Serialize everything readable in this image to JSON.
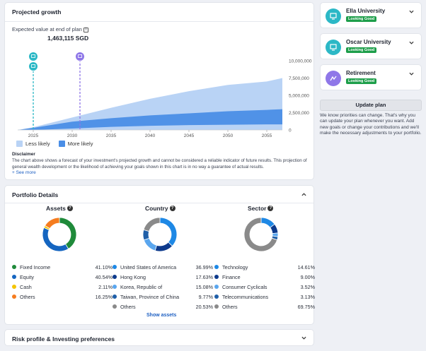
{
  "growth": {
    "title": "Projected growth",
    "expected_label": "Expected value at end of plan",
    "expected_value": "1,463,115 SGD",
    "legend_less": "Less likely",
    "legend_more": "More likely",
    "disclaimer_title": "Disclaimer",
    "disclaimer_text": "The chart above shows a forecast of your investment's projected growth and cannot be considered a reliable indicator of future results. This projection of general wealth development or the likelihood of achieving your goals shown in this chart is in no way a guarantee of actual results.",
    "see_more": "+ See more",
    "colors": {
      "less_likely": "#b9d3f5",
      "more_likely": "#4a8ee6",
      "marker_university": "#2cb8c6",
      "marker_retirement": "#8f77e8"
    }
  },
  "chart_data": {
    "type": "area",
    "x_ticks": [
      "2025",
      "2030",
      "2035",
      "2040",
      "2045",
      "2050",
      "2055"
    ],
    "y_ticks": [
      "10,000,000",
      "7,500,000",
      "5,000,000",
      "2,500,000",
      "0"
    ],
    "ylim": [
      0,
      10000000
    ],
    "xlim": [
      2023,
      2057
    ],
    "series": [
      {
        "name": "Less likely",
        "x": [
          2023,
          2025,
          2030,
          2035,
          2040,
          2045,
          2050,
          2055,
          2057
        ],
        "upper": [
          0,
          400000,
          1800000,
          3200000,
          4500000,
          5600000,
          6500000,
          7000000,
          7500000
        ],
        "lower": [
          0,
          0,
          0,
          0,
          0,
          0,
          0,
          0,
          0
        ]
      },
      {
        "name": "More likely",
        "x": [
          2023,
          2025,
          2030,
          2035,
          2040,
          2045,
          2050,
          2055,
          2057
        ],
        "upper": [
          0,
          300000,
          1200000,
          1700000,
          2100000,
          2400000,
          2700000,
          2900000,
          3000000
        ],
        "lower": [
          0,
          0,
          200000,
          450000,
          600000,
          700000,
          750000,
          800000,
          800000
        ]
      }
    ],
    "markers": [
      {
        "year": 2025,
        "kind": "university"
      },
      {
        "year": 2025,
        "kind": "university"
      },
      {
        "year": 2031,
        "kind": "retirement"
      }
    ]
  },
  "goals": [
    {
      "name": "Ella University",
      "status": "Looking Good",
      "icon": "university-icon",
      "color": "#2cb8c6"
    },
    {
      "name": "Oscar University",
      "status": "Looking Good",
      "icon": "university-icon",
      "color": "#2cb8c6"
    },
    {
      "name": "Retirement",
      "status": "Looking Good",
      "icon": "retirement-icon",
      "color": "#8f77e8"
    }
  ],
  "update": {
    "button": "Update plan",
    "note": "We know priorities can change. That's why you can update your plan whenever you want. Add new goals or change your contributions and we'll make the necessary adjustments to your portfolio."
  },
  "portfolio": {
    "title": "Portfolio Details",
    "show_assets": "Show assets",
    "assets": {
      "title": "Assets",
      "items": [
        {
          "label": "Fixed Income",
          "pct": "41.10%",
          "value": 41.1,
          "color": "#1f8a3a"
        },
        {
          "label": "Equity",
          "pct": "40.54%",
          "value": 40.54,
          "color": "#1565c0"
        },
        {
          "label": "Cash",
          "pct": "2.11%",
          "value": 2.11,
          "color": "#f4c400"
        },
        {
          "label": "Others",
          "pct": "16.25%",
          "value": 16.25,
          "color": "#f57c1f"
        }
      ]
    },
    "country": {
      "title": "Country",
      "items": [
        {
          "label": "United States of America",
          "pct": "36.99%",
          "value": 36.99,
          "color": "#1e88e5"
        },
        {
          "label": "Hong Kong",
          "pct": "17.63%",
          "value": 17.63,
          "color": "#0d3a8c"
        },
        {
          "label": "Korea, Republic of",
          "pct": "15.08%",
          "value": 15.08,
          "color": "#5aa6ee"
        },
        {
          "label": "Taiwan, Province of China",
          "pct": "9.77%",
          "value": 9.77,
          "color": "#1f5fa8"
        },
        {
          "label": "Others",
          "pct": "20.53%",
          "value": 20.53,
          "color": "#8a8a8a"
        }
      ]
    },
    "sector": {
      "title": "Sector",
      "items": [
        {
          "label": "Technology",
          "pct": "14.61%",
          "value": 14.61,
          "color": "#1e88e5"
        },
        {
          "label": "Finance",
          "pct": "9.00%",
          "value": 9.0,
          "color": "#0d3a8c"
        },
        {
          "label": "Consumer Cyclicals",
          "pct": "3.52%",
          "value": 3.52,
          "color": "#5aa6ee"
        },
        {
          "label": "Telecommunications",
          "pct": "3.13%",
          "value": 3.13,
          "color": "#1f5fa8"
        },
        {
          "label": "Others",
          "pct": "69.75%",
          "value": 69.75,
          "color": "#8a8a8a"
        }
      ]
    }
  },
  "risk": {
    "title": "Risk profile & Investing preferences"
  }
}
